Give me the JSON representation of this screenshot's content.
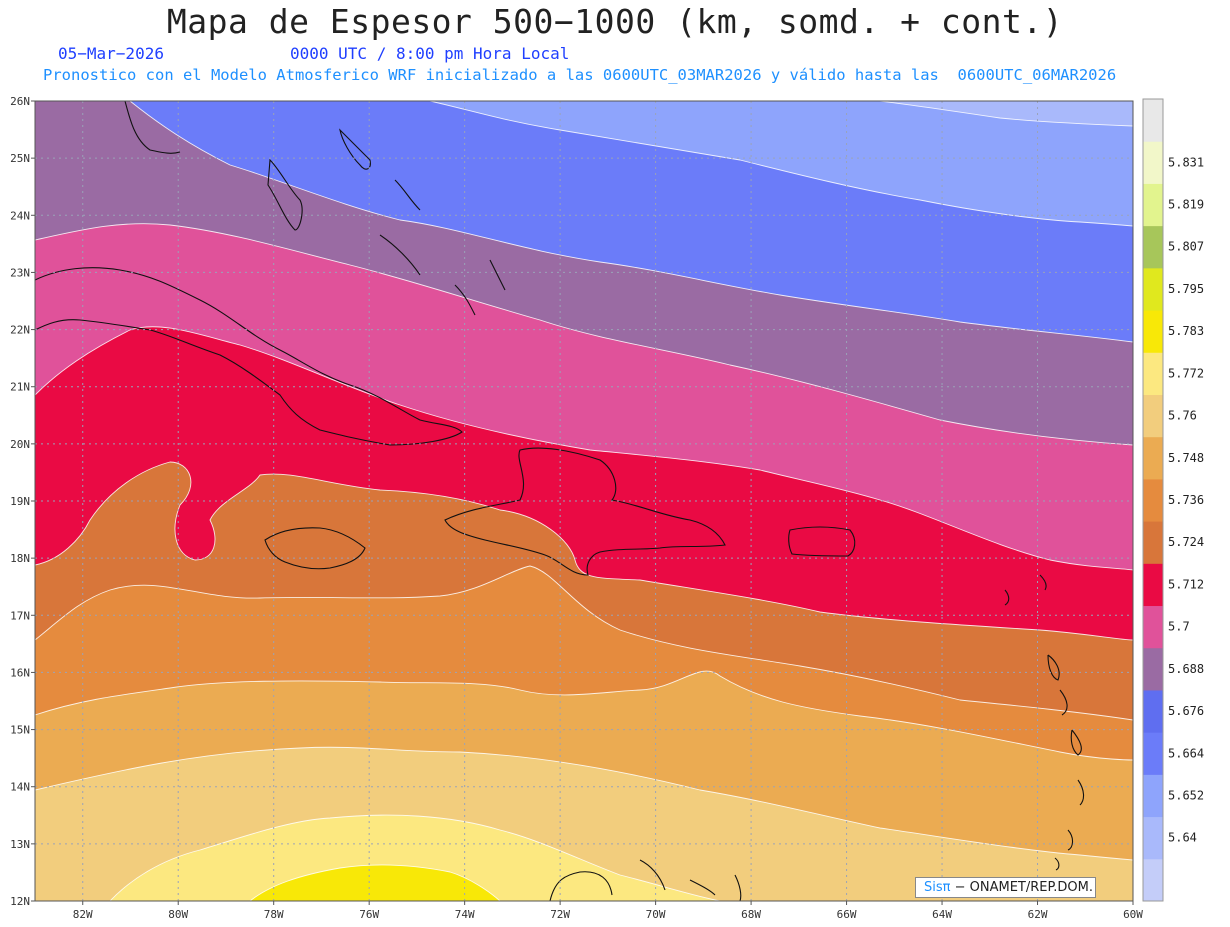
{
  "header": {
    "title": "Mapa de Espesor 500−1000 (km, somd. + cont.)",
    "date": "05−Mar−2026",
    "time": "0000 UTC / 8:00 pm Hora Local",
    "forecast": "Pronostico con el Modelo Atmosferico WRF inicializado a las 0600UTC_03MAR2026 y válido hasta las  0600UTC_06MAR2026"
  },
  "axes": {
    "lat_labels": [
      "26N",
      "25N",
      "24N",
      "23N",
      "22N",
      "21N",
      "20N",
      "19N",
      "18N",
      "17N",
      "16N",
      "15N",
      "14N",
      "13N",
      "12N"
    ],
    "lon_labels": [
      "82W",
      "80W",
      "78W",
      "76W",
      "74W",
      "72W",
      "70W",
      "68W",
      "66W",
      "64W",
      "62W",
      "60W"
    ]
  },
  "legend": {
    "levels": [
      "5.64",
      "5.652",
      "5.664",
      "5.676",
      "5.688",
      "5.7",
      "5.712",
      "5.724",
      "5.736",
      "5.748",
      "5.76",
      "5.772",
      "5.783",
      "5.795",
      "5.807",
      "5.819",
      "5.831"
    ],
    "colors": [
      "#c4cdf9",
      "#a9b9fb",
      "#8ea4fc",
      "#6b7cf9",
      "#5f6ef0",
      "#9a6ba3",
      "#e0529a",
      "#ea0a44",
      "#d8763a",
      "#e58b3e",
      "#ebab52",
      "#f2cd7d",
      "#fce880",
      "#f8e807",
      "#e0e81e",
      "#a7c65a",
      "#e2f48e",
      "#f2f7c9",
      "#e8e8e8"
    ],
    "color_map": {
      "blue_light": "#8ea4fc",
      "blue": "#6b7cf9",
      "purple": "#9a6ba3",
      "pink": "#e0529a",
      "red": "#ea0a44",
      "orange_dark": "#d8763a",
      "orange": "#e58b3e",
      "orange_light": "#ebab52",
      "tan": "#f2cd7d",
      "yellow_light": "#fce880",
      "yellow": "#f8e807"
    }
  },
  "credit": {
    "brand": "Sisπ",
    "text": " − ONAMET/REP.DOM."
  }
}
